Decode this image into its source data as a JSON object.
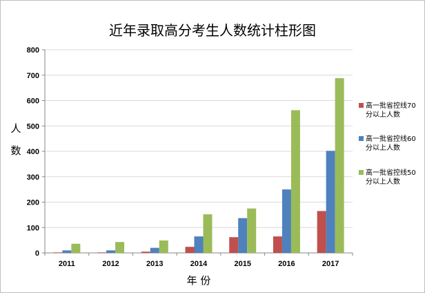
{
  "chart_data": {
    "type": "bar",
    "title": "近年录取高分考生人数统计柱形图",
    "xlabel": "年 份",
    "ylabel": "人数",
    "ylabel_chars": [
      "人",
      "数"
    ],
    "categories": [
      "2011",
      "2012",
      "2013",
      "2014",
      "2015",
      "2016",
      "2017"
    ],
    "ylim": [
      0,
      800
    ],
    "yticks": [
      "0",
      "100",
      "200",
      "300",
      "400",
      "500",
      "600",
      "700",
      "800"
    ],
    "grid": true,
    "legend_position": "right",
    "series": [
      {
        "name": "高一批省控线70分以上人数",
        "name_lines": [
          "高一批省控线70",
          "分以上人数"
        ],
        "color": "#c0504d",
        "values": [
          2,
          2,
          5,
          24,
          62,
          65,
          165
        ]
      },
      {
        "name": "高一批省控线60分以上人数",
        "name_lines": [
          "高一批省控线60",
          "分以上人数"
        ],
        "color": "#4f81bd",
        "values": [
          10,
          10,
          20,
          65,
          137,
          250,
          402
        ]
      },
      {
        "name": "高一批省控线50分以上人数",
        "name_lines": [
          "高一批省控线50",
          "分以上人数"
        ],
        "color": "#9bbb59",
        "values": [
          36,
          43,
          49,
          152,
          175,
          562,
          688
        ]
      }
    ]
  }
}
